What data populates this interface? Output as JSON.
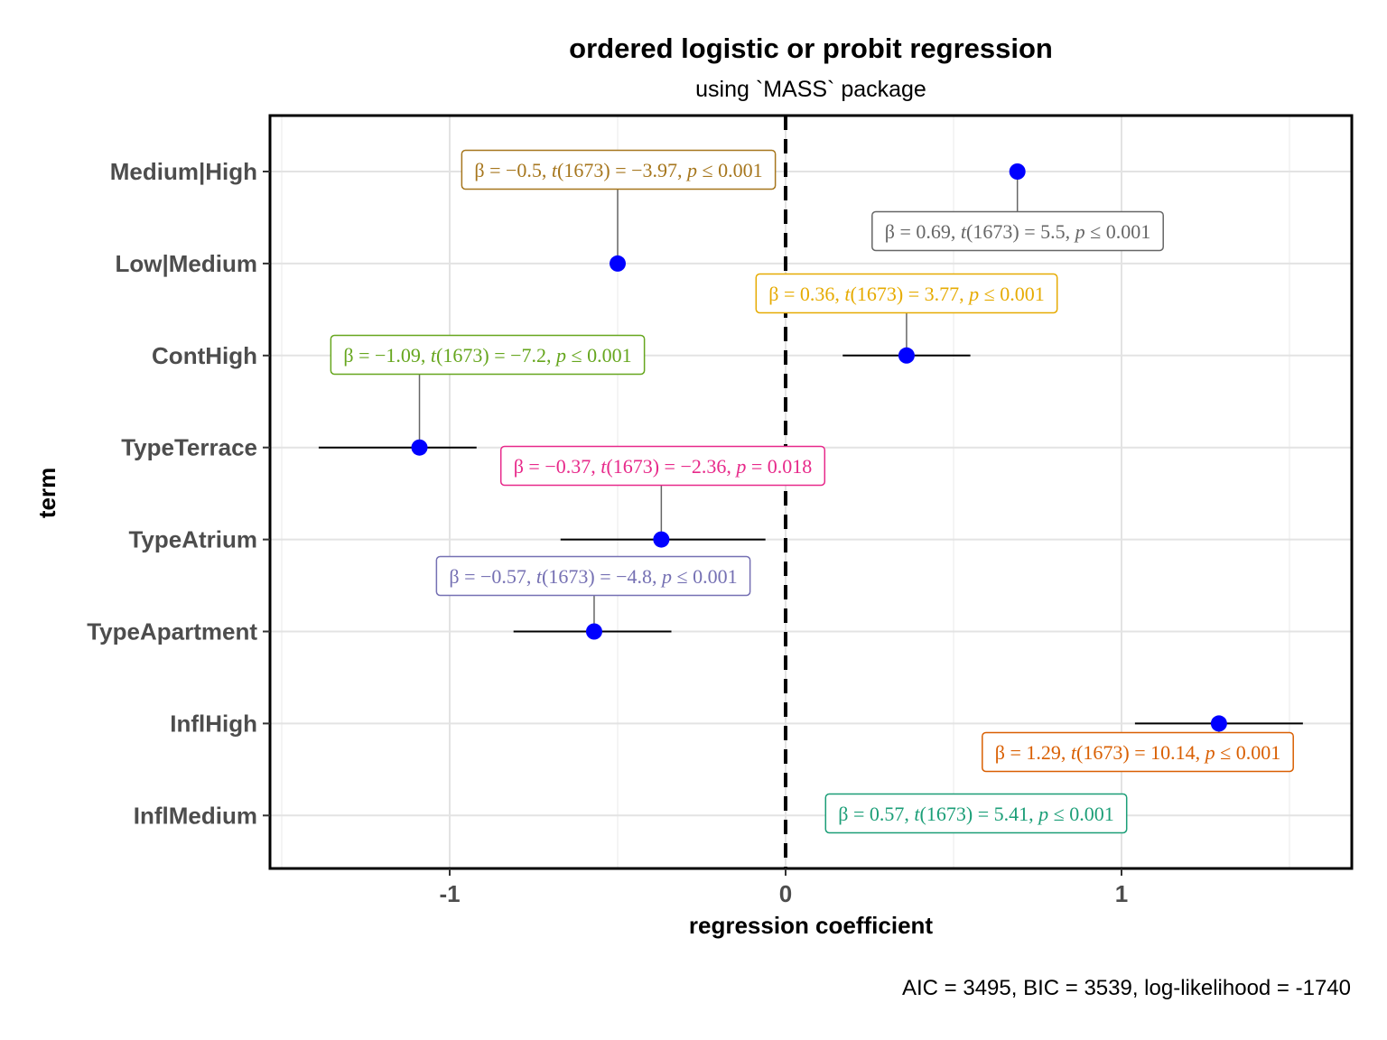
{
  "chart_data": {
    "type": "scatter",
    "title": "ordered logistic or probit regression",
    "subtitle": "using `MASS` package",
    "xlabel": "regression coefficient",
    "ylabel": "term",
    "caption": "AIC = 3495, BIC = 3539, log-likelihood = -1740",
    "xlim": [
      -1.5,
      1.7
    ],
    "x_ticks": [
      -1,
      0,
      1
    ],
    "x_tick_labels": [
      "-1",
      "0",
      "1"
    ],
    "reference_line": 0,
    "point_color": "#0000ff",
    "terms": [
      {
        "term": "Medium|High",
        "estimate": 0.69,
        "ci_low": null,
        "ci_high": null,
        "label": {
          "beta": "0.69",
          "t": "5.5",
          "p_op": "≤",
          "p": "0.001"
        },
        "label_color": "#666666"
      },
      {
        "term": "Low|Medium",
        "estimate": -0.5,
        "ci_low": null,
        "ci_high": null,
        "label": {
          "beta": "−0.5",
          "t": "−3.97",
          "p_op": "≤",
          "p": "0.001"
        },
        "label_color": "#a6761d"
      },
      {
        "term": "ContHigh",
        "estimate": 0.36,
        "ci_low": 0.17,
        "ci_high": 0.55,
        "label": {
          "beta": "0.36",
          "t": "3.77",
          "p_op": "≤",
          "p": "0.001"
        },
        "label_color": "#e6ab02"
      },
      {
        "term": "TypeTerrace",
        "estimate": -1.09,
        "ci_low": -1.39,
        "ci_high": -0.92,
        "label": {
          "beta": "−1.09",
          "t": "−7.2",
          "p_op": "≤",
          "p": "0.001"
        },
        "label_color": "#66a61e"
      },
      {
        "term": "TypeAtrium",
        "estimate": -0.37,
        "ci_low": -0.67,
        "ci_high": -0.06,
        "label": {
          "beta": "−0.37",
          "t": "−2.36",
          "p_op": "=",
          "p": "0.018"
        },
        "label_color": "#e7298a"
      },
      {
        "term": "TypeApartment",
        "estimate": -0.57,
        "ci_low": -0.81,
        "ci_high": -0.34,
        "label": {
          "beta": "−0.57",
          "t": "−4.8",
          "p_op": "≤",
          "p": "0.001"
        },
        "label_color": "#7570b3"
      },
      {
        "term": "InflHigh",
        "estimate": 1.29,
        "ci_low": 1.04,
        "ci_high": 1.54,
        "label": {
          "beta": "1.29",
          "t": "10.14",
          "p_op": "≤",
          "p": "0.001"
        },
        "label_color": "#d95f02"
      },
      {
        "term": "InflMedium",
        "estimate": 0.57,
        "ci_low": null,
        "ci_high": null,
        "label": {
          "beta": "0.57",
          "t": "5.41",
          "p_op": "≤",
          "p": "0.001"
        },
        "label_color": "#1b9e77"
      }
    ],
    "df": "1673",
    "grid": true
  }
}
